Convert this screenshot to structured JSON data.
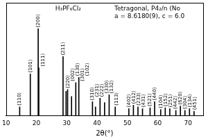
{
  "chart_data": {
    "type": "bar",
    "title": "H₃PF₆Cl₂",
    "annotations": [
      "Tetragonal, P4₂/n (No",
      "a = 8.6180(9), c = 6.0"
    ],
    "x_label": "2θ(°)",
    "x": [
      14.5,
      18.0,
      20.6,
      20.8,
      28.8,
      29.8,
      30.3,
      31.6,
      33.0,
      34.0,
      38.5,
      39.5,
      41.0,
      42.5,
      44.0,
      46.0,
      50.5,
      52.0,
      53.5,
      55.0,
      57.5,
      59.0,
      61.0,
      62.5,
      64.0,
      66.0,
      67.5,
      69.0,
      70.5,
      72.0
    ],
    "values": [
      10,
      48,
      100,
      55,
      68,
      28,
      30,
      22,
      38,
      44,
      16,
      10,
      20,
      15,
      24,
      10,
      8,
      12,
      10,
      8,
      9,
      16,
      7,
      9,
      8,
      6,
      11,
      6,
      8,
      5
    ],
    "peak_labels": [
      "(110)",
      "(101)",
      "(200)",
      "(111)",
      "(211)",
      "(220)",
      "(002)",
      "(130)",
      "(301)",
      "(102)",
      "(310)",
      "(231)",
      "(222)",
      "(330)",
      "(132)",
      "(113)",
      "(402)",
      "(412)",
      "(233)",
      "(431)",
      "(521)",
      "(440)",
      "(104)",
      "(152)",
      "(251)",
      "(442)",
      "(620)",
      "(304)",
      "(134)",
      "(451)"
    ],
    "color": "#000000",
    "xlim": [
      10,
      75
    ],
    "xticks": [
      10,
      20,
      30,
      40,
      50,
      60,
      70
    ],
    "ylim": [
      0,
      130
    ],
    "tick_labels": "x",
    "grid": false
  }
}
